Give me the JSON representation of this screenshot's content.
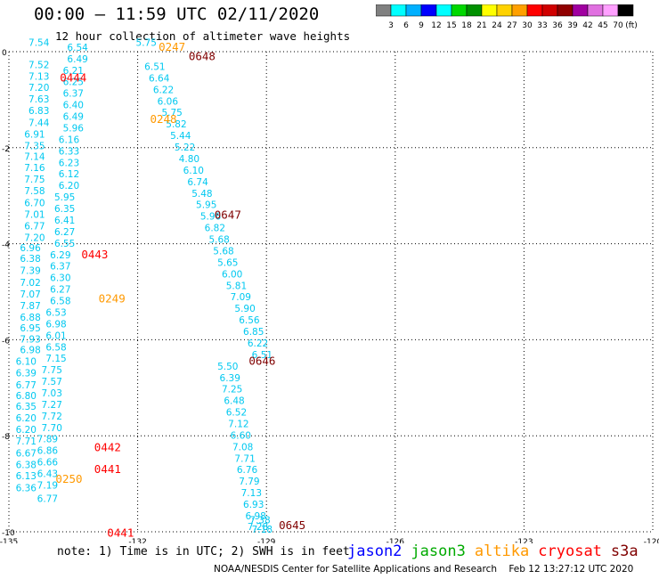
{
  "header": {
    "title": "00:00 – 11:59 UTC 02/11/2020",
    "subtitle": "12 hour collection of altimeter wave heights"
  },
  "footer": {
    "note": "note: 1) Time is in UTC; 2) SWH is in feet",
    "credit": "NOAA/NESDIS Center for Satellite Applications and Research    Feb 12 13:27:12 UTC 2020"
  },
  "colors": {
    "grid": "#000000",
    "values": "#00c8f0",
    "time_orange": "#ff9900",
    "time_red": "#ff0000",
    "time_darkred": "#800000"
  },
  "satellite_legend": [
    {
      "name": "jason2",
      "color": "#0000ff"
    },
    {
      "name": "jason3",
      "color": "#00aa00"
    },
    {
      "name": "altika",
      "color": "#ff9900"
    },
    {
      "name": "cryosat",
      "color": "#ff0000"
    },
    {
      "name": "s3a",
      "color": "#800000"
    }
  ],
  "colorbar": {
    "unit": "(ft)",
    "labels": [
      "3",
      "6",
      "9",
      "12",
      "15",
      "18",
      "21",
      "24",
      "27",
      "30",
      "33",
      "36",
      "39",
      "42",
      "45",
      "70"
    ],
    "colors": [
      "#808080",
      "#00ffff",
      "#00b0ff",
      "#0000ff",
      "#00ffff",
      "#00d800",
      "#009000",
      "#ffff00",
      "#ffd200",
      "#ffa000",
      "#ff0000",
      "#d00000",
      "#900000",
      "#a000a0",
      "#e070e0",
      "#ffa0ff",
      "#000000"
    ]
  },
  "chart_data": {
    "type": "scatter",
    "xlim": [
      -135,
      -120
    ],
    "ylim": [
      -10,
      0
    ],
    "x_ticks": [
      -135,
      -132,
      -129,
      -126,
      -123,
      -120
    ],
    "y_ticks": [
      0,
      -2,
      -4,
      -6,
      -8,
      -10
    ],
    "x_tick_labels": [
      "-135",
      "-132",
      "-129",
      "-126",
      "-123",
      "-120"
    ],
    "y_tick_labels": [
      "0",
      "-2",
      "-4",
      "-6",
      "-8",
      "-10"
    ],
    "grid": true,
    "value_color": "#00c8f0",
    "tracks": [
      {
        "x": [
          -134.3,
          -134.3,
          -134.3,
          -134.3,
          -134.3,
          -134.3,
          -134.3,
          -134.4,
          -134.4,
          -134.4,
          -134.4,
          -134.4,
          -134.4,
          -134.4,
          -134.4,
          -134.4,
          -134.4,
          -134.5,
          -134.5,
          -134.5,
          -134.5,
          -134.5,
          -134.5,
          -134.5,
          -134.5,
          -134.5,
          -134.5,
          -134.6,
          -134.6,
          -134.6,
          -134.6,
          -134.6,
          -134.6,
          -134.6,
          -134.6,
          -134.6,
          -134.6,
          -134.6,
          -134.6
        ],
        "y": [
          0.12,
          -0.34,
          -0.58,
          -0.82,
          -1.06,
          -1.3,
          -1.55,
          -1.79,
          -2.03,
          -2.25,
          -2.49,
          -2.73,
          -2.97,
          -3.22,
          -3.46,
          -3.7,
          -3.94,
          -4.16,
          -4.38,
          -4.63,
          -4.88,
          -5.12,
          -5.36,
          -5.6,
          -5.83,
          -6.06,
          -6.28,
          -6.52,
          -6.76,
          -7.01,
          -7.24,
          -7.46,
          -7.7,
          -7.94,
          -8.18,
          -8.43,
          -8.67,
          -8.91,
          -9.16
        ],
        "labels": [
          "7.54",
          "7.52",
          "7.13",
          "7.20",
          "7.63",
          "6.83",
          "7.44",
          "6.91",
          "7.35",
          "7.14",
          "7.16",
          "7.75",
          "7.58",
          "6.70",
          "7.01",
          "6.77",
          "7.20",
          "6.96",
          "6.38",
          "7.39",
          "7.02",
          "7.07",
          "7.87",
          "6.88",
          "6.95",
          "7.93",
          "6.98",
          "6.10",
          "6.39",
          "6.77",
          "6.80",
          "6.35",
          "6.20",
          "6.20",
          "7.71",
          "6.67",
          "6.38",
          "6.13",
          "6.36"
        ]
      },
      {
        "x": [
          -133.4,
          -133.4,
          -133.5,
          -133.5,
          -133.5,
          -133.5,
          -133.5,
          -133.5,
          -133.6,
          -133.6,
          -133.6,
          -133.6,
          -133.6,
          -133.7,
          -133.7,
          -133.7,
          -133.7,
          -133.7,
          -133.8,
          -133.8,
          -133.8,
          -133.8,
          -133.8,
          -133.9,
          -133.9,
          -133.9,
          -133.9,
          -133.9,
          -134.0,
          -134.0,
          -134.0,
          -134.0,
          -134.0,
          -134.0,
          -134.1,
          -134.1,
          -134.1,
          -134.1,
          -134.1,
          -134.1
        ],
        "y": [
          0.02,
          -0.22,
          -0.46,
          -0.7,
          -0.94,
          -1.18,
          -1.42,
          -1.66,
          -1.9,
          -2.14,
          -2.38,
          -2.62,
          -2.86,
          -3.1,
          -3.34,
          -3.58,
          -3.82,
          -4.06,
          -4.3,
          -4.54,
          -4.78,
          -5.02,
          -5.26,
          -5.5,
          -5.74,
          -5.98,
          -6.22,
          -6.46,
          -6.7,
          -6.94,
          -7.18,
          -7.42,
          -7.66,
          -7.9,
          -8.14,
          -8.38,
          -8.62,
          -8.86,
          -9.1,
          -9.38
        ],
        "labels": [
          "6.54",
          "6.49",
          "6.21",
          "6.25",
          "6.37",
          "6.40",
          "6.49",
          "5.96",
          "6.16",
          "6.33",
          "6.23",
          "6.12",
          "6.20",
          "5.95",
          "6.35",
          "6.41",
          "6.27",
          "6.55",
          "6.29",
          "6.37",
          "6.30",
          "6.27",
          "6.58",
          "6.53",
          "6.98",
          "6.01",
          "6.58",
          "7.15",
          "7.75",
          "7.57",
          "7.03",
          "7.27",
          "7.72",
          "7.70",
          "7.89",
          "6.86",
          "6.66",
          "6.43",
          "7.19",
          "6.77"
        ]
      },
      {
        "x": [
          -131.8,
          -131.6,
          -131.5,
          -131.4,
          -131.3,
          -131.2,
          -131.1,
          -131.0,
          -130.9,
          -130.8,
          -130.7,
          -130.6,
          -130.5,
          -130.4,
          -130.3,
          -130.2,
          -130.1,
          -130.0,
          -129.9,
          -129.8,
          -129.7,
          -129.6,
          -129.5,
          -129.4,
          -129.3,
          -129.2,
          -129.1
        ],
        "y": [
          0.12,
          -0.38,
          -0.62,
          -0.86,
          -1.1,
          -1.34,
          -1.58,
          -1.82,
          -2.06,
          -2.3,
          -2.54,
          -2.78,
          -3.02,
          -3.26,
          -3.5,
          -3.74,
          -3.98,
          -4.22,
          -4.46,
          -4.7,
          -4.94,
          -5.18,
          -5.42,
          -5.66,
          -5.9,
          -6.14,
          -6.38
        ],
        "labels": [
          "5.75",
          "6.51",
          "6.64",
          "6.22",
          "6.06",
          "5.75",
          "5.82",
          "5.44",
          "5.22",
          "4.80",
          "6.10",
          "6.74",
          "5.48",
          "5.95",
          "5.96",
          "6.82",
          "5.68",
          "5.68",
          "5.65",
          "6.00",
          "5.81",
          "7.09",
          "5.90",
          "6.56",
          "6.85",
          "6.22",
          "6.51"
        ]
      },
      {
        "x": [
          -129.9,
          -129.85,
          -129.8,
          -129.75,
          -129.7,
          -129.65,
          -129.6,
          -129.55,
          -129.5,
          -129.45,
          -129.4,
          -129.35,
          -129.3,
          -129.25,
          -129.2,
          -129.15,
          -129.1
        ],
        "y": [
          -6.62,
          -6.86,
          -7.1,
          -7.34,
          -7.58,
          -7.82,
          -8.06,
          -8.3,
          -8.54,
          -8.78,
          -9.02,
          -9.26,
          -9.5,
          -9.74,
          -9.96,
          -9.82,
          -10.02
        ],
        "labels": [
          "5.50",
          "6.39",
          "7.25",
          "6.48",
          "6.52",
          "7.12",
          "6.60",
          "7.08",
          "7.71",
          "6.76",
          "7.79",
          "7.13",
          "6.93",
          "6.98",
          "7.28",
          "7.38",
          "7.18"
        ]
      }
    ],
    "time_labels": [
      {
        "text": "0247",
        "x": -131.2,
        "y": 0.02,
        "color": "#ff9900"
      },
      {
        "text": "0648",
        "x": -130.5,
        "y": -0.18,
        "color": "#800000"
      },
      {
        "text": "0444",
        "x": -133.5,
        "y": -0.62,
        "color": "#ff0000"
      },
      {
        "text": "0248",
        "x": -131.4,
        "y": -1.48,
        "color": "#ff9900"
      },
      {
        "text": "0647",
        "x": -129.9,
        "y": -3.48,
        "color": "#800000"
      },
      {
        "text": "0443",
        "x": -133.0,
        "y": -4.3,
        "color": "#ff0000"
      },
      {
        "text": "0249",
        "x": -132.6,
        "y": -5.22,
        "color": "#ff9900"
      },
      {
        "text": "0646",
        "x": -129.1,
        "y": -6.52,
        "color": "#800000"
      },
      {
        "text": "0442",
        "x": -132.7,
        "y": -8.32,
        "color": "#ff0000"
      },
      {
        "text": "0441",
        "x": -132.7,
        "y": -8.78,
        "color": "#ff0000"
      },
      {
        "text": "0250",
        "x": -133.6,
        "y": -8.98,
        "color": "#ff9900"
      },
      {
        "text": "0645",
        "x": -128.4,
        "y": -9.94,
        "color": "#800000"
      },
      {
        "text": "0441",
        "x": -132.4,
        "y": -10.1,
        "color": "#ff0000"
      }
    ]
  }
}
